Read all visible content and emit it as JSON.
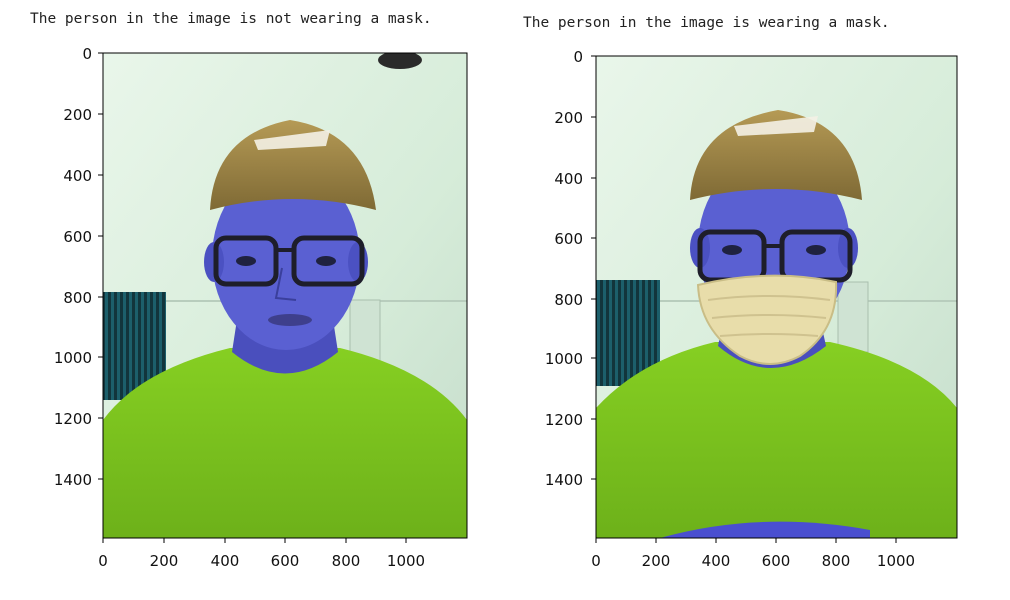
{
  "cells": [
    {
      "output_text": "The person in the image is not wearing a mask.",
      "image_description": "photo",
      "chart_data": {
        "type": "image",
        "x_ticks": [
          0,
          200,
          400,
          600,
          800,
          1000
        ],
        "y_ticks": [
          0,
          200,
          400,
          600,
          800,
          1000,
          1200,
          1400
        ],
        "xlim": [
          0,
          1200
        ],
        "ylim": [
          1600,
          0
        ]
      }
    },
    {
      "output_text": "The person in the image is wearing a mask.",
      "image_description": "photo",
      "chart_data": {
        "type": "image",
        "x_ticks": [
          0,
          200,
          400,
          600,
          800,
          1000
        ],
        "y_ticks": [
          0,
          200,
          400,
          600,
          800,
          1000,
          1200,
          1400
        ],
        "xlim": [
          0,
          1200
        ],
        "ylim": [
          1600,
          0
        ]
      }
    }
  ],
  "colors": {
    "background_wall": "#dcefe0",
    "skin_tinted": "#5a5fd0",
    "cap": "#9a8545",
    "shirt": "#7cc41e",
    "mask": "#e7dcaa",
    "towel": "#1d6b74"
  }
}
